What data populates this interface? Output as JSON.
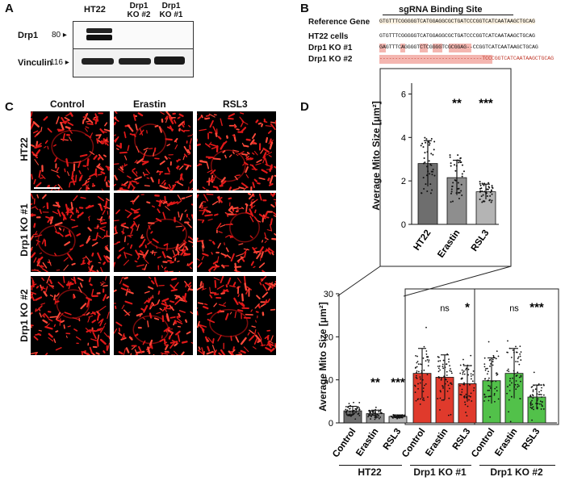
{
  "panel_labels": {
    "a": "A",
    "b": "B",
    "c": "C",
    "d": "D"
  },
  "western": {
    "lanes": [
      "HT22",
      "Drp1 KO #2",
      "Drp1 KO #1"
    ],
    "rows": [
      {
        "protein": "Drp1",
        "mw": "80"
      },
      {
        "protein": "Vinculin",
        "mw": "116"
      }
    ]
  },
  "sequences": {
    "header": "sgRNA Binding Site",
    "rows": [
      {
        "label": "Reference Gene",
        "seq": "GTGTTTCGGGGGTCATGGAGGCGCTGATCCCGGTCATCAATAAGCTGCAG"
      },
      {
        "label": "HT22 cells",
        "seq": "GTGTTTCGGGGGTCATGGAGGCGCTGATCCCGGTCATCAATAAGCTGCAG"
      },
      {
        "label": "Drp1 KO #1",
        "seq": "GAGTTTCAGGGGTCTCGGGGTCGCGGAG--CCGGTCATCAATAAGCTGCAG"
      },
      {
        "label": "Drp1 KO #2",
        "seq": "---------------------------------TCCCGGTCATCAATAAGCTGCAG"
      }
    ]
  },
  "micrographs": {
    "columns": [
      "Control",
      "Erastin",
      "RSL3"
    ],
    "rows": [
      "HT22",
      "Drp1 KO #1",
      "Drp1 KO #2"
    ]
  },
  "chart_data": [
    {
      "type": "bar",
      "title": "",
      "ylabel": "Average Mito Size [μm²]",
      "categories": [
        "HT22",
        "Erastin",
        "RSL3"
      ],
      "values": [
        2.8,
        2.15,
        1.5
      ],
      "errors": [
        1.05,
        0.8,
        0.35
      ],
      "significance": [
        "",
        "**",
        "***"
      ],
      "ylim": [
        0,
        6.5
      ],
      "yticks": [
        "0",
        "2",
        "4",
        "6"
      ],
      "colors": [
        "#6e6e6e",
        "#8e8e8e",
        "#b4b4b4"
      ]
    },
    {
      "type": "bar",
      "title": "",
      "ylabel": "Average Mito Size [μm²]",
      "groups": [
        {
          "name": "HT22",
          "categories": [
            "Control",
            "Erastin",
            "RSL3"
          ],
          "values": [
            2.8,
            2.15,
            1.5
          ],
          "errors": [
            1.05,
            0.8,
            0.35
          ],
          "significance": [
            "",
            "**",
            "***"
          ],
          "colors": [
            "#6e6e6e",
            "#8e8e8e",
            "#b4b4b4"
          ]
        },
        {
          "name": "Drp1 KO #1",
          "categories": [
            "Control",
            "Erastin",
            "RSL3"
          ],
          "values": [
            11.5,
            10.6,
            9.1
          ],
          "errors": [
            5.8,
            5.2,
            4.2
          ],
          "significance": [
            "",
            "ns",
            "*"
          ],
          "colors": [
            "#e03a2c",
            "#e03a2c",
            "#e03a2c"
          ]
        },
        {
          "name": "Drp1 KO #2",
          "categories": [
            "Control",
            "Erastin",
            "RSL3"
          ],
          "values": [
            9.8,
            11.5,
            6.0
          ],
          "errors": [
            5.3,
            5.8,
            2.8
          ],
          "significance": [
            "",
            "ns",
            "***"
          ],
          "colors": [
            "#52c14a",
            "#52c14a",
            "#52c14a"
          ]
        }
      ],
      "ylim": [
        0,
        30
      ],
      "yticks": [
        "0",
        "10",
        "20",
        "30"
      ]
    }
  ]
}
